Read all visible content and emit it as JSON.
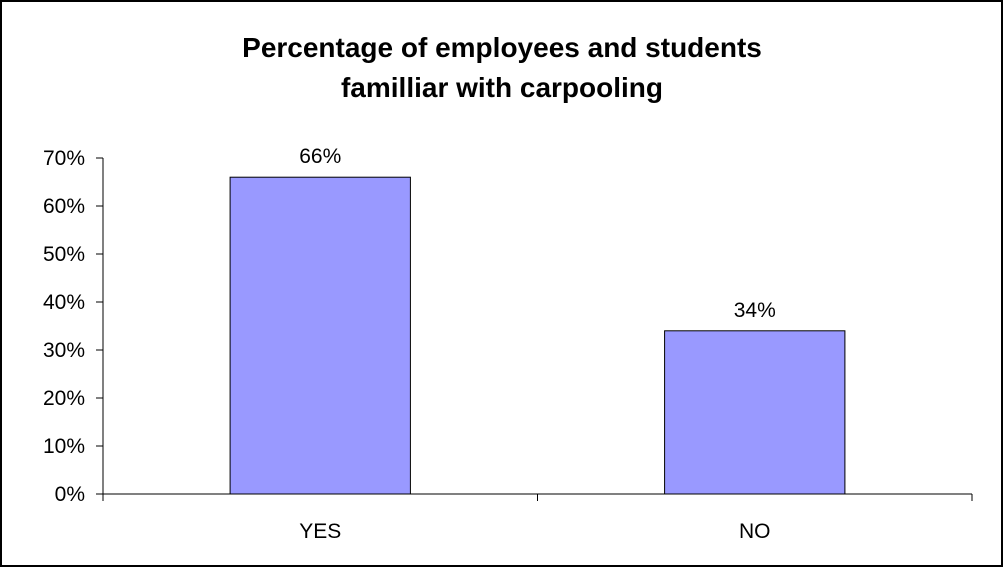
{
  "chart_data": {
    "type": "bar",
    "title_lines": [
      "Percentage of employees and students",
      "familliar with carpooling"
    ],
    "categories": [
      "YES",
      "NO"
    ],
    "values": [
      66,
      34
    ],
    "value_labels": [
      "66%",
      "34%"
    ],
    "ylim": [
      0,
      70
    ],
    "yticks": [
      0,
      10,
      20,
      30,
      40,
      50,
      60,
      70
    ],
    "ytick_labels": [
      "0%",
      "10%",
      "20%",
      "30%",
      "40%",
      "50%",
      "60%",
      "70%"
    ],
    "xlabel": "",
    "ylabel": "",
    "grid": false,
    "legend": false,
    "colors": {
      "bar_fill": "#9999ff",
      "bar_stroke": "#000000",
      "axis": "#000000",
      "frame": "#000000"
    }
  }
}
